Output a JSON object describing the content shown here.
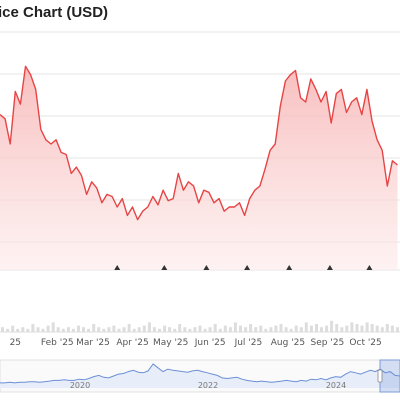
{
  "chart_data": {
    "type": "area",
    "title": "ice Chart (USD)",
    "series_color": "#e64545",
    "fill_top_color": "#f7b3b3",
    "fill_bottom_color": "#fde9e9",
    "x_tick_labels": [
      "25",
      "Feb '25",
      "Mar '25",
      "Apr '25",
      "May '25",
      "Jun '25",
      "Jul '25",
      "Aug '25",
      "Sep '25",
      "Oct '25"
    ],
    "x_tick_days": [
      -2,
      31,
      59,
      90,
      120,
      151,
      181,
      212,
      243,
      273
    ],
    "x_range_days": [
      -14,
      300
    ],
    "y_range": [
      0,
      100
    ],
    "grid": true,
    "price_series": {
      "x_days": [
        -14,
        -10,
        -6,
        -2,
        2,
        6,
        10,
        14,
        18,
        22,
        26,
        30,
        34,
        38,
        42,
        46,
        50,
        54,
        58,
        62,
        66,
        70,
        74,
        78,
        82,
        86,
        90,
        94,
        98,
        102,
        106,
        110,
        114,
        118,
        122,
        126,
        130,
        134,
        138,
        142,
        146,
        150,
        154,
        158,
        162,
        166,
        170,
        174,
        178,
        182,
        186,
        190,
        194,
        198,
        202,
        206,
        210,
        214,
        218,
        222,
        226,
        230,
        234,
        238,
        242,
        246,
        250,
        254,
        258,
        262,
        266,
        270,
        274,
        278,
        282,
        286,
        290,
        294,
        298
      ],
      "values": [
        74,
        72,
        60,
        85,
        79,
        97,
        93,
        86,
        67,
        62,
        60,
        62,
        56,
        55,
        46,
        49,
        45,
        36,
        42,
        39,
        32,
        36,
        35,
        30,
        34,
        26,
        30,
        24,
        28,
        30,
        35,
        31,
        38,
        33,
        34,
        46,
        38,
        42,
        40,
        32,
        38,
        37,
        32,
        34,
        28,
        30,
        30,
        32,
        26,
        34,
        38,
        40,
        48,
        57,
        60,
        78,
        90,
        93,
        95,
        82,
        80,
        91,
        86,
        80,
        85,
        70,
        84,
        86,
        75,
        80,
        82,
        74,
        86,
        71,
        62,
        57,
        40,
        52,
        50
      ]
    },
    "event_markers_days": [
      78,
      115,
      148,
      180,
      213,
      245,
      276
    ],
    "volume_bars": [
      3,
      2,
      4,
      2,
      3,
      2,
      5,
      3,
      2,
      4,
      6,
      3,
      2,
      3,
      2,
      4,
      3,
      2,
      5,
      3,
      2,
      3,
      4,
      2,
      3,
      5,
      2,
      3,
      4,
      6,
      3,
      2,
      4,
      3,
      2,
      5,
      3,
      2,
      3,
      4,
      2,
      3,
      5,
      2,
      4,
      3,
      6,
      4,
      3,
      5,
      3,
      4,
      2,
      3,
      4,
      5,
      3,
      2,
      4,
      3,
      6,
      4,
      5,
      3,
      4,
      7,
      5,
      3,
      4,
      6,
      5,
      4,
      6,
      5,
      4,
      3,
      5,
      4,
      3
    ],
    "navigator": {
      "tick_labels": [
        "2020",
        "2022",
        "2024"
      ],
      "tick_positions": [
        0.2,
        0.52,
        0.84
      ],
      "values": [
        8,
        8,
        9,
        8,
        9,
        9,
        10,
        10,
        9,
        10,
        11,
        12,
        12,
        13,
        12,
        12,
        14,
        13,
        15,
        18,
        20,
        17,
        16,
        19,
        22,
        23,
        26,
        28,
        25,
        24,
        27,
        38,
        32,
        26,
        30,
        28,
        27,
        26,
        25,
        27,
        28,
        26,
        24,
        22,
        20,
        16,
        15,
        16,
        17,
        14,
        12,
        11,
        10,
        11,
        10,
        9,
        10,
        11,
        12,
        11,
        10,
        12,
        11,
        14,
        13,
        15,
        13,
        16,
        18,
        17,
        22,
        26,
        24,
        22,
        25,
        28,
        26,
        30,
        24,
        26,
        20,
        19
      ]
    }
  }
}
